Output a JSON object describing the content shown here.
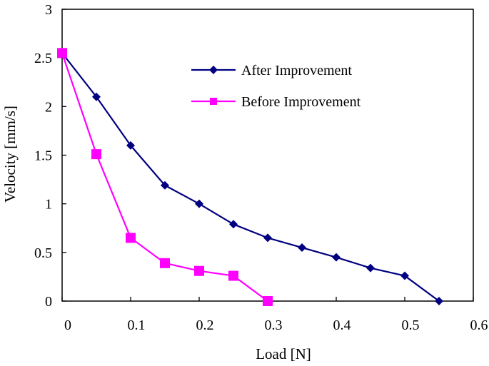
{
  "chart_data": {
    "type": "line",
    "title": "",
    "xlabel": "Load [N]",
    "ylabel": "Velocity [mm/s]",
    "xlim": [
      0,
      0.6
    ],
    "ylim": [
      0,
      3
    ],
    "xticks": [
      0,
      0.1,
      0.2,
      0.3,
      0.4,
      0.5,
      0.6
    ],
    "xtick_labels": [
      "0",
      "0.1",
      "0.2",
      "0.3",
      "0.4",
      "0.5",
      "0.6"
    ],
    "yticks": [
      0,
      0.5,
      1,
      1.5,
      2,
      2.5,
      3
    ],
    "ytick_labels": [
      "0",
      "0.5",
      "1",
      "1.5",
      "2",
      "2.5",
      "3"
    ],
    "grid": false,
    "legend_position": "top-right (inside plot)",
    "series": [
      {
        "name": "After Improvement",
        "color": "#000080",
        "marker": "diamond",
        "x": [
          0,
          0.05,
          0.1,
          0.15,
          0.2,
          0.25,
          0.3,
          0.35,
          0.4,
          0.45,
          0.5,
          0.55
        ],
        "y": [
          2.55,
          2.1,
          1.6,
          1.19,
          1.0,
          0.79,
          0.65,
          0.55,
          0.45,
          0.34,
          0.26,
          0.0
        ]
      },
      {
        "name": "Before Improvement",
        "color": "#ff00ff",
        "marker": "square",
        "x": [
          0,
          0.05,
          0.1,
          0.15,
          0.2,
          0.25,
          0.3
        ],
        "y": [
          2.55,
          1.51,
          0.65,
          0.39,
          0.31,
          0.26,
          0.0
        ]
      }
    ]
  }
}
